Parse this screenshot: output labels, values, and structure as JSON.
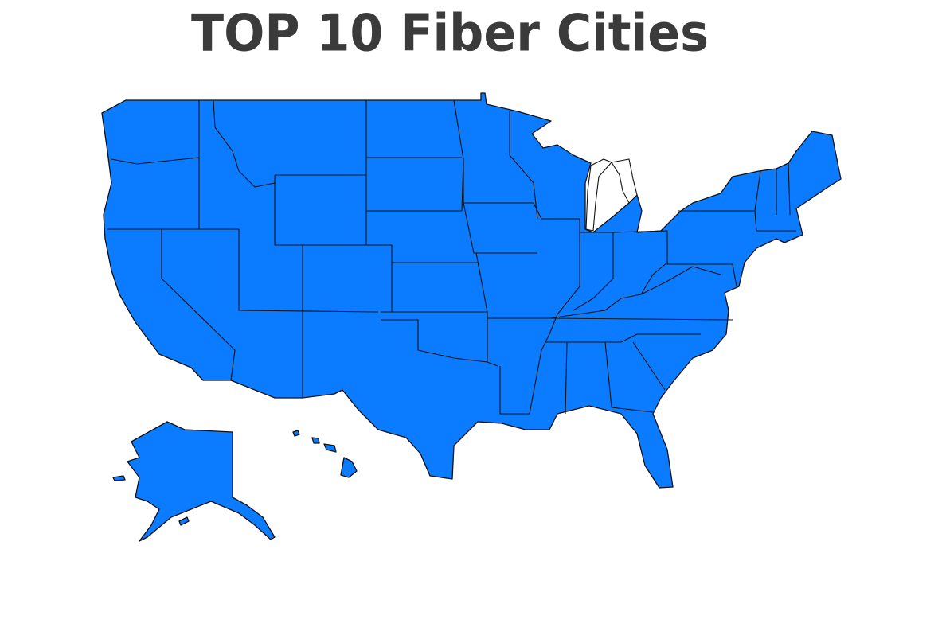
{
  "title": "TOP 10 Fiber Cities"
}
